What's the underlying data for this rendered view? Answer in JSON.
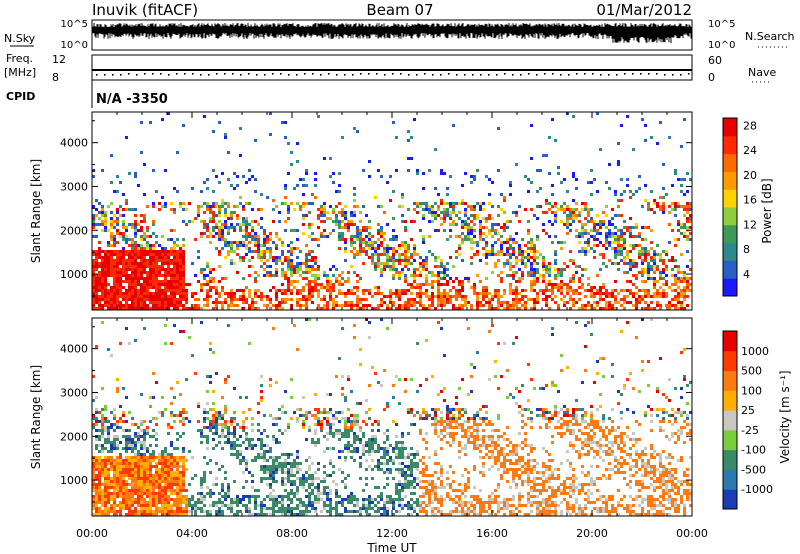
{
  "header": {
    "station": "Inuvik (fitACF)",
    "beam": "Beam 07",
    "date": "01/Mar/2012"
  },
  "summary": {
    "nsky_label": "N.Sky",
    "nsearch_label": "N.Search",
    "nsky_ticks": [
      "10^5",
      "10^0"
    ],
    "nsearch_ticks": [
      "10^5",
      "10^0"
    ],
    "freq_label": "Freq.",
    "freq_unit": "[MHz]",
    "freq_ticks": [
      "12",
      "8"
    ],
    "nave_label": "Nave",
    "nave_ticks": [
      "60",
      "0"
    ],
    "cpid_label": "CPID",
    "cpid_value": "N/A -3350"
  },
  "chart_data": [
    {
      "type": "heatmap",
      "name": "power",
      "ylabel": "Slant Range [km]",
      "xlabel": "Time UT",
      "yticks": [
        1000,
        2000,
        3000,
        4000
      ],
      "ylim": [
        180,
        4700
      ],
      "xticks": [
        "00:00",
        "04:00",
        "08:00",
        "12:00",
        "16:00",
        "20:00",
        "00:00"
      ],
      "xlim_hours": [
        0,
        24
      ],
      "colorbar": {
        "label": "Power [dB]",
        "ticks": [
          "4",
          "8",
          "12",
          "16",
          "20",
          "24",
          "28"
        ],
        "colors": [
          "#1a1aff",
          "#2a5fc8",
          "#2e8a8a",
          "#3f9a5a",
          "#8fcf3f",
          "#ffd200",
          "#ff9a00",
          "#ff6a00",
          "#ff2a00",
          "#e60000"
        ]
      }
    },
    {
      "type": "heatmap",
      "name": "velocity",
      "ylabel": "Slant Range [km]",
      "xlabel": "Time UT",
      "yticks": [
        1000,
        2000,
        3000,
        4000
      ],
      "ylim": [
        180,
        4700
      ],
      "xticks": [
        "00:00",
        "04:00",
        "08:00",
        "12:00",
        "16:00",
        "20:00",
        "00:00"
      ],
      "xlim_hours": [
        0,
        24
      ],
      "colorbar": {
        "label": "Velocity [m s⁻¹]",
        "ticks": [
          "1000",
          "500",
          "100",
          "25",
          "-25",
          "-100",
          "-500",
          "-1000"
        ],
        "colors": [
          "#1a3cb4",
          "#2a7ab0",
          "#3a8a6a",
          "#7acd3a",
          "#c8c8c0",
          "#ffb000",
          "#ff7a10",
          "#ff3a00",
          "#e60000"
        ]
      }
    }
  ]
}
